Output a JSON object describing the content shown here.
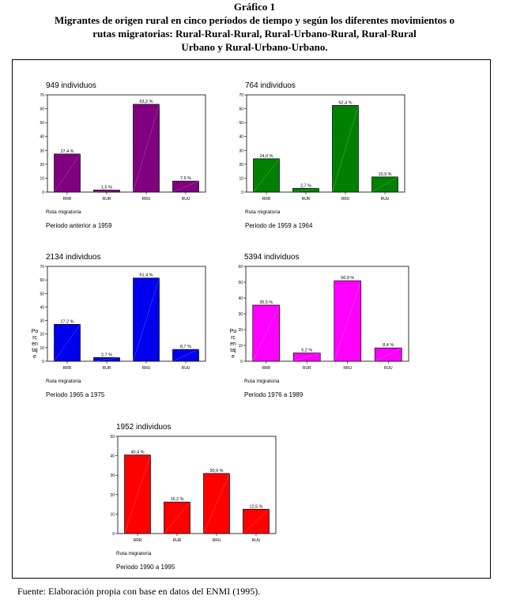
{
  "figure": {
    "label": "Gráfico 1",
    "title_lines": [
      "Migrantes de origen rural en cinco períodos de tiempo y según los diferentes movimientos o",
      "rutas migratorias: Rural-Rural-Rural, Rural-Urbano-Rural, Rural-Rural",
      "Urbano y Rural-Urbano-Urbano."
    ],
    "source": "Fuente: Elaboración propia con base en datos del ENMI (1995)."
  },
  "chart_data": [
    {
      "type": "bar",
      "title": "949 individuos",
      "categories": [
        "RRR",
        "RUR",
        "RRU",
        "RUU"
      ],
      "values": [
        27.4,
        1.5,
        63.2,
        7.9
      ],
      "data_labels": [
        "27,4 %",
        "1,5 %",
        "63,2 %",
        "7,9 %"
      ],
      "xlabel": "Ruta migratoria",
      "ylabel": "",
      "period": "Periodo anterior a 1959",
      "ylim": [
        0,
        70
      ],
      "yticks": [
        0,
        10,
        20,
        30,
        40,
        50,
        60,
        70
      ],
      "color": "#800080",
      "grid": false
    },
    {
      "type": "bar",
      "title": "764 individuos",
      "categories": [
        "RRR",
        "RUR",
        "RRU",
        "RUU"
      ],
      "values": [
        24.0,
        2.7,
        62.4,
        10.9
      ],
      "data_labels": [
        "24,0 %",
        "2,7 %",
        "62,4 %",
        "10,9 %"
      ],
      "xlabel": "Ruta migratoria",
      "ylabel": "",
      "period": "Periodo de 1959 a 1964",
      "ylim": [
        0,
        70
      ],
      "yticks": [
        0,
        10,
        20,
        30,
        40,
        50,
        60,
        70
      ],
      "color": "#008000",
      "grid": false
    },
    {
      "type": "bar",
      "title": "2134 individuos",
      "categories": [
        "RRR",
        "RUR",
        "RRU",
        "RUU"
      ],
      "values": [
        27.2,
        2.7,
        61.4,
        8.7
      ],
      "data_labels": [
        "27,2 %",
        "2,7 %",
        "61,4 %",
        "8,7 %"
      ],
      "xlabel": "Ruta migratoria",
      "ylabel": "Po rc en taj e",
      "period": "Periodo 1965 a 1975",
      "ylim": [
        0,
        70
      ],
      "yticks": [
        0,
        10,
        20,
        30,
        40,
        50,
        60,
        70
      ],
      "color": "#0000ee",
      "grid": false
    },
    {
      "type": "bar",
      "title": "5394 individuos",
      "categories": [
        "RRR",
        "RUR",
        "RRU",
        "RUU"
      ],
      "values": [
        35.5,
        5.2,
        50.9,
        8.4
      ],
      "data_labels": [
        "35,5 %",
        "5,2 %",
        "50,9 %",
        "8,4 %"
      ],
      "xlabel": "Ruta migratoria",
      "ylabel": "Po rc en taj e",
      "period": "Periodo 1976 a 1989",
      "ylim": [
        0,
        60
      ],
      "yticks": [
        0,
        10,
        20,
        30,
        40,
        50,
        60
      ],
      "color": "#ff00ff",
      "grid": false
    },
    {
      "type": "bar",
      "title": "1952 individuos",
      "categories": [
        "RRR",
        "RUR",
        "RRU",
        "RUU"
      ],
      "values": [
        40.4,
        16.2,
        30.9,
        12.5
      ],
      "data_labels": [
        "40,4 %",
        "16,2 %",
        "30,9 %",
        "12,5 %"
      ],
      "xlabel": "Ruta migratoria",
      "ylabel": "",
      "period": "Periodo 1990 a 1995",
      "ylim": [
        0,
        50
      ],
      "yticks": [
        0,
        10,
        20,
        30,
        40,
        50
      ],
      "color": "#ff0000",
      "grid": false
    }
  ]
}
